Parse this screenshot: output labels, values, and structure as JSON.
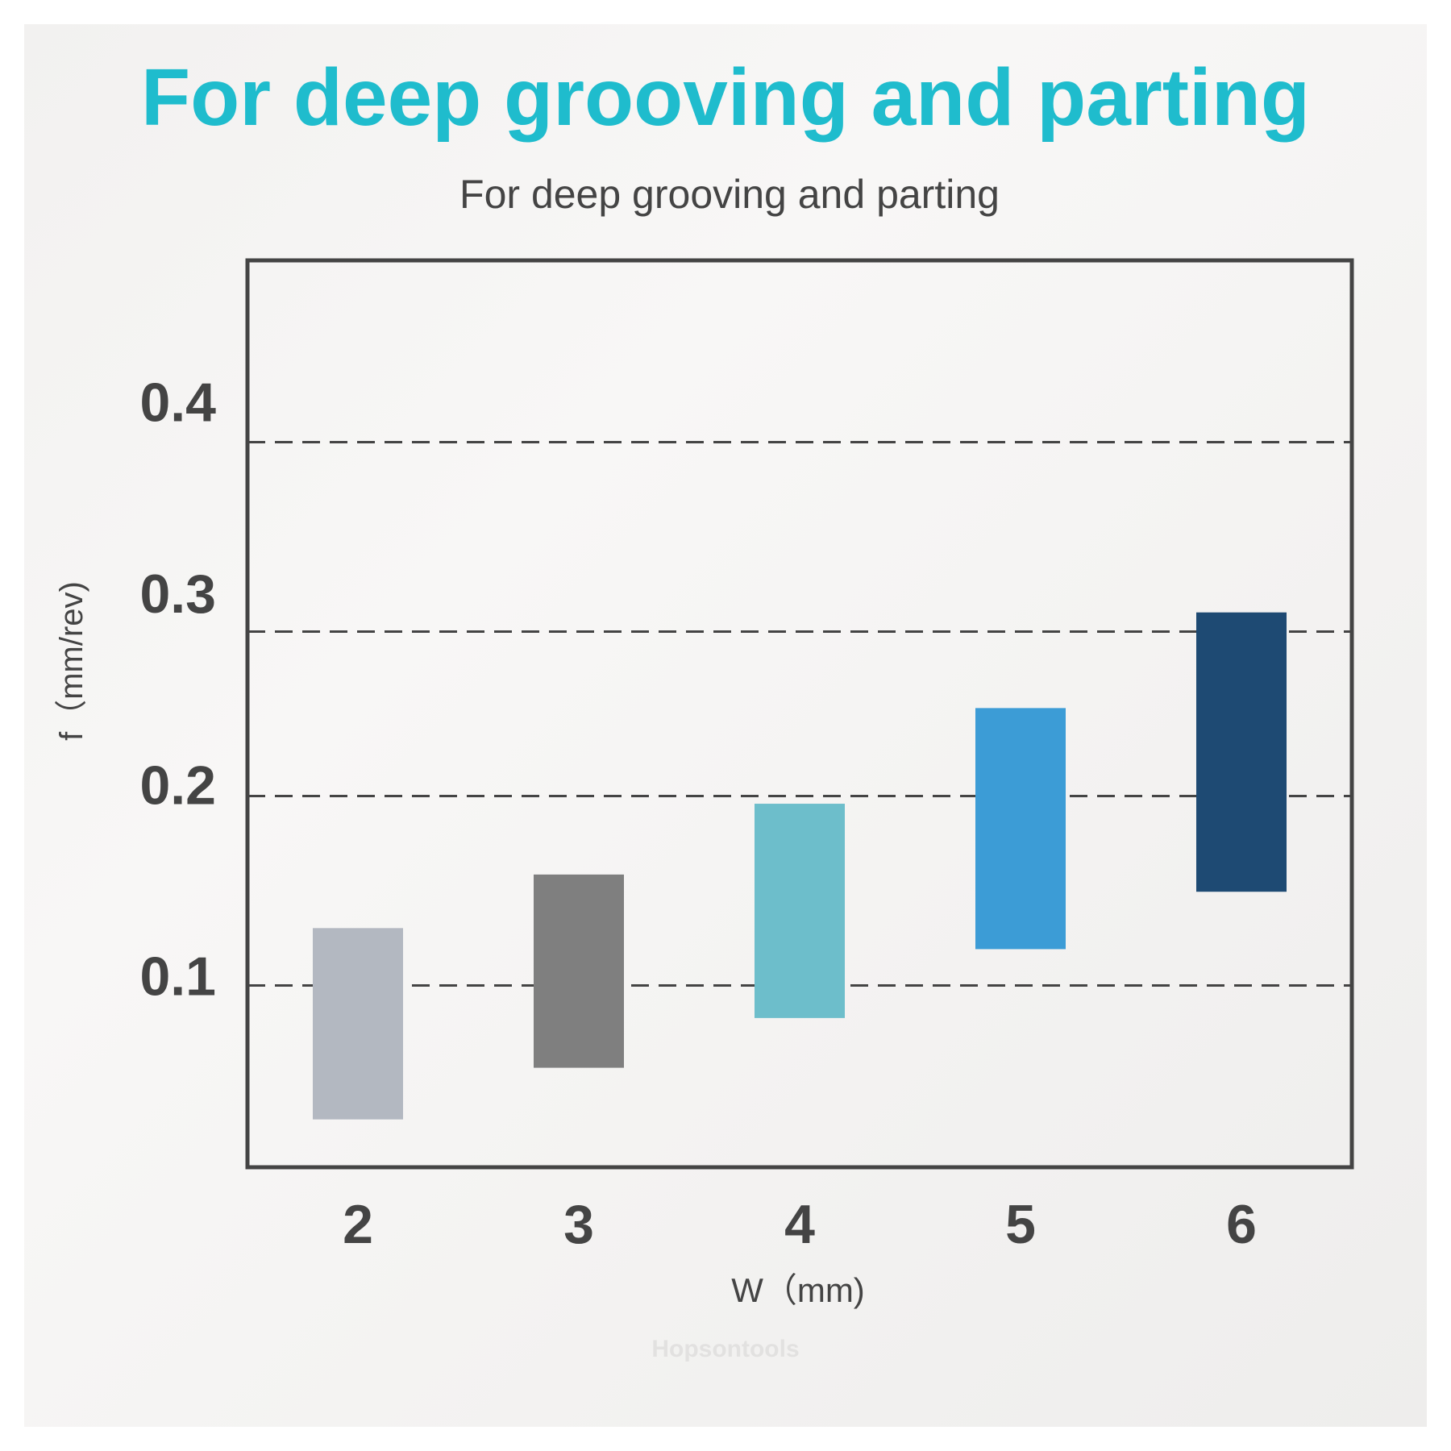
{
  "chart_data": {
    "type": "bar",
    "title": "For deep grooving and parting",
    "subtitle": "For deep grooving and parting",
    "xlabel": "W（mm)",
    "ylabel": "f（mm/rev)",
    "categories": [
      "2",
      "3",
      "4",
      "5",
      "6"
    ],
    "ranges": [
      {
        "w": "2",
        "low": 0.025,
        "high": 0.125
      },
      {
        "w": "3",
        "low": 0.052,
        "high": 0.153
      },
      {
        "w": "4",
        "low": 0.078,
        "high": 0.19
      },
      {
        "w": "5",
        "low": 0.114,
        "high": 0.24
      },
      {
        "w": "6",
        "low": 0.144,
        "high": 0.29
      }
    ],
    "ylim": [
      0,
      0.474
    ],
    "yticks": [
      0.1,
      0.2,
      0.3,
      0.4
    ],
    "ytick_labels": [
      "0.1",
      "0.2",
      "0.3",
      "0.4"
    ],
    "gridlines": [
      0.095,
      0.194,
      0.28,
      0.379
    ],
    "grid": true,
    "colors": [
      "#b3b8c1",
      "#7f7f7f",
      "#6dbecb",
      "#3c9cd6",
      "#1e4a73"
    ],
    "title_color": "#1fbccd",
    "text_color": "#444444"
  },
  "watermark": "Hopsontools"
}
